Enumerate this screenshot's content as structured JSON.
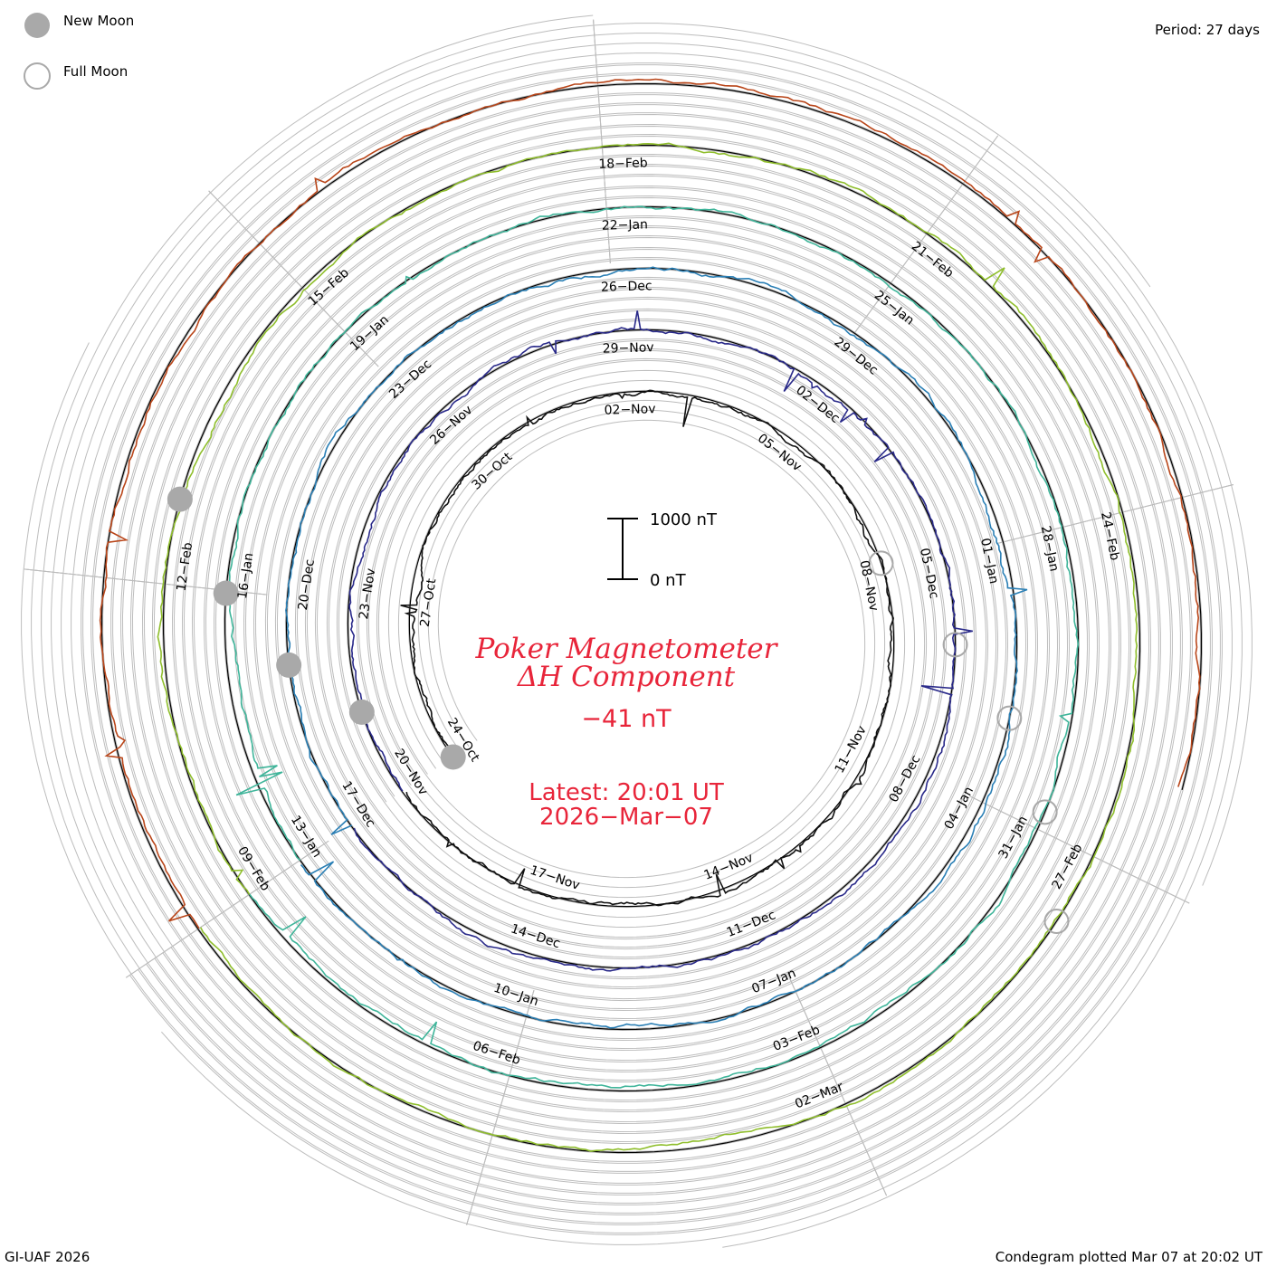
{
  "legend": {
    "new_moon_label": "New Moon",
    "full_moon_label": "Full Moon"
  },
  "period_label": "Period: 27 days",
  "footer": {
    "left": "GI-UAF 2026",
    "right": "Condegram plotted Mar 07 at 20:02 UT"
  },
  "scale_bar": {
    "top_label": "1000 nT",
    "bottom_label": "0 nT"
  },
  "title": {
    "line1": "Poker Magnetometer",
    "line2": "ΔH Component",
    "current_value": "−41 nT",
    "latest_line1": "Latest: 20:01 UT",
    "latest_line2": "2026−Mar−07"
  },
  "colors": {
    "text_red": "#e8253a",
    "grid": "#bdbdbd",
    "moon_fill": "#a9a9a9"
  },
  "chart_data": {
    "type": "line",
    "title": "Poker Magnetometer ΔH Component",
    "period_days": 27,
    "current_value_nT": -41,
    "ylim": [
      0,
      1000
    ],
    "series": [
      {
        "color": "#111111",
        "label_dates": [
          "24−Oct",
          "27−Oct",
          "30−Oct",
          "02−Nov",
          "05−Nov",
          "08−Nov",
          "11−Nov",
          "14−Nov",
          "17−Nov"
        ]
      },
      {
        "color": "#2a2a8a",
        "label_dates": [
          "20−Nov",
          "23−Nov",
          "26−Nov",
          "29−Nov",
          "02−Dec",
          "05−Dec",
          "08−Dec",
          "11−Dec",
          "14−Dec"
        ]
      },
      {
        "color": "#2a7fb5",
        "label_dates": [
          "17−Dec",
          "20−Dec",
          "23−Dec",
          "26−Dec",
          "29−Dec",
          "01−Jan",
          "04−Jan",
          "07−Jan",
          "10−Jan"
        ]
      },
      {
        "color": "#3fb59a",
        "label_dates": [
          "13−Jan",
          "16−Jan",
          "19−Jan",
          "22−Jan",
          "25−Jan",
          "28−Jan",
          "31−Jan",
          "03−Feb",
          "06−Feb"
        ]
      },
      {
        "color": "#8fbe2c",
        "label_dates": [
          "09−Feb",
          "12−Feb",
          "15−Feb",
          "18−Feb",
          "21−Feb",
          "24−Feb",
          "27−Feb",
          "02−Mar"
        ]
      },
      {
        "color": "#b9461a",
        "label_dates": []
      }
    ],
    "new_moon_dates": [
      "Oct 21",
      "Nov 20",
      "Dec 20",
      "Jan 18",
      "Feb 17"
    ],
    "full_moon_dates": [
      "Nov 5",
      "Dec 4",
      "Jan 3",
      "Feb 1",
      "Mar 3"
    ]
  }
}
